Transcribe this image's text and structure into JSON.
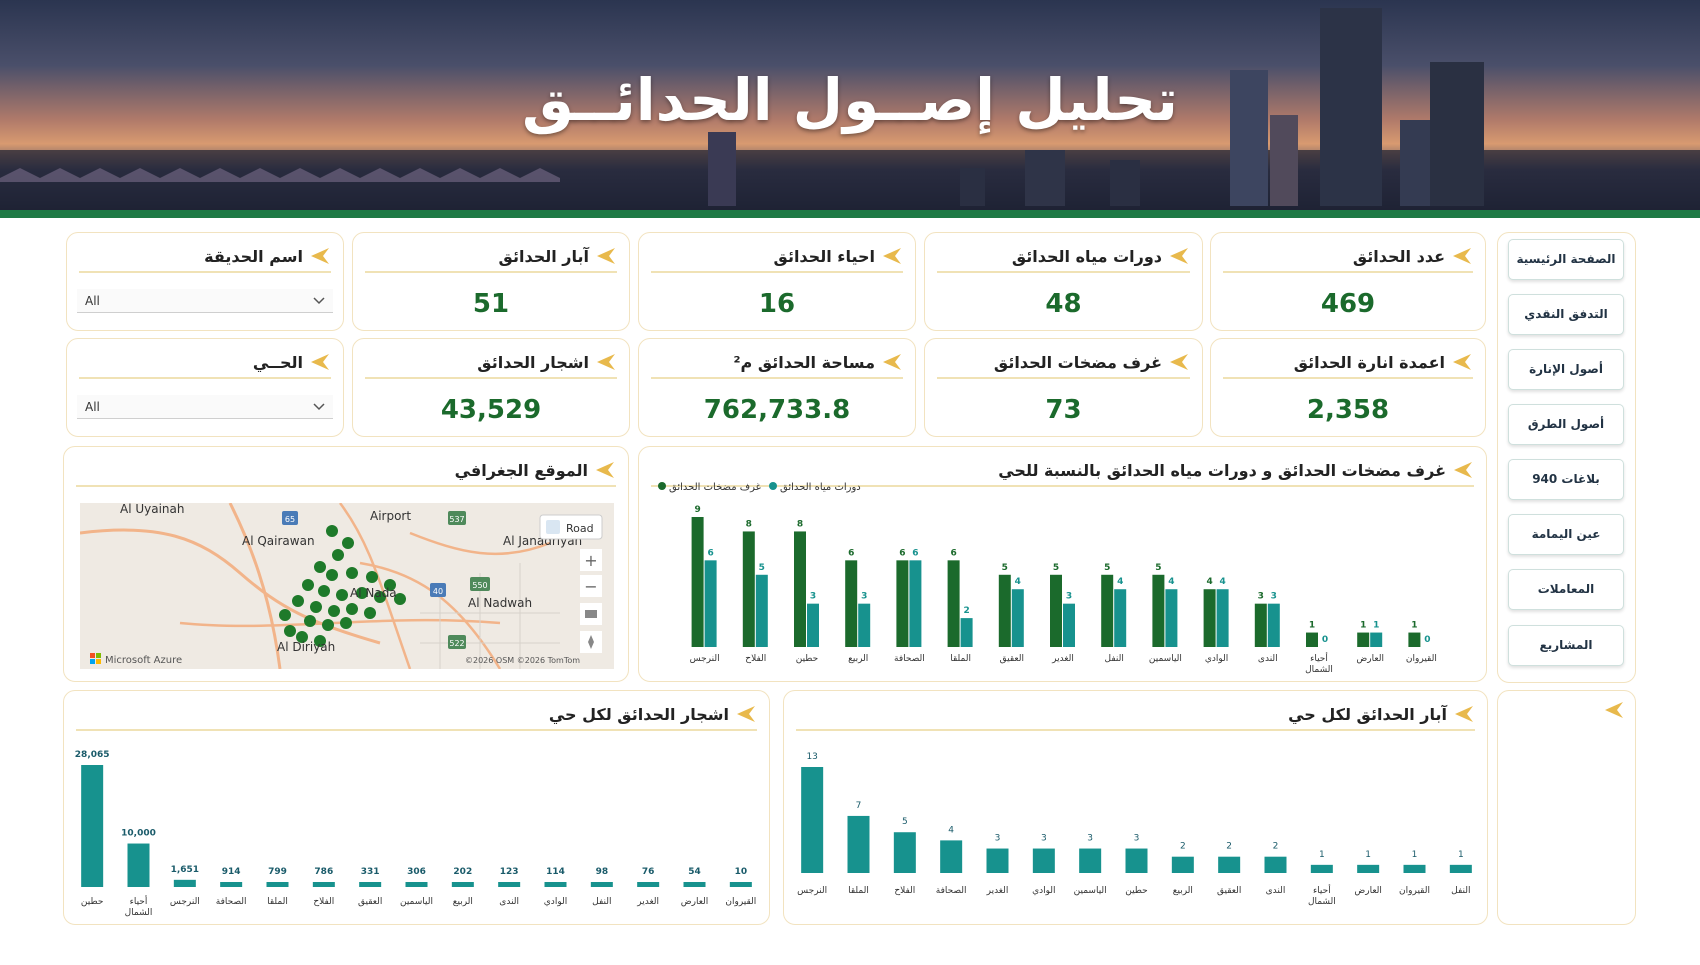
{
  "header": {
    "title": "تحليل إصــول الحدائــق"
  },
  "colors": {
    "dark_green": "#1b6a2c",
    "teal": "#17928e",
    "gold": "#e8b94c",
    "card_border": "#f2e3c0"
  },
  "nav": [
    "الصفحة الرئيسية",
    "التدفق النقدي",
    "أصول الإنارة",
    "أصول الطرق",
    "بلاغات 940",
    "عين اليمامة",
    "المعاملات",
    "المشاريع"
  ],
  "kpis": {
    "parks_count": {
      "label": "عدد الحدائق",
      "value": "469"
    },
    "water_cycles": {
      "label": "دورات مياه الحدائق",
      "value": "48"
    },
    "districts": {
      "label": "احياء الحدائق",
      "value": "16"
    },
    "wells": {
      "label": "آبار الحدائق",
      "value": "51"
    },
    "lighting": {
      "label": "اعمدة انارة الحدائق",
      "value": "2,358"
    },
    "pump_rooms": {
      "label": "غرف مضخات الحدائق",
      "value": "73"
    },
    "area": {
      "label": "مساحة الحدائق م²",
      "value": "762,733.8"
    },
    "trees": {
      "label": "اشجار الحدائق",
      "value": "43,529"
    }
  },
  "filters": {
    "park_name": {
      "label": "اسم الحديقة",
      "value": "All"
    },
    "district": {
      "label": "الحــي",
      "value": "All"
    }
  },
  "map": {
    "title": "الموقع الجغرافي",
    "road_button": "Road",
    "attribution": "©2026 OSM ©2026 TomTom",
    "brand": "Microsoft Azure",
    "places": [
      "Al Uyainah",
      "Airport",
      "Al Qairawan",
      "Al Janadriyah",
      "Al Nada",
      "Al Nadwah",
      "Al Diriyah"
    ],
    "road_shields": [
      "65",
      "537",
      "550",
      "40",
      "522"
    ],
    "zoom_in": "+",
    "zoom_out": "−"
  },
  "chart_pump_water": {
    "title": "غرف مضخات الحدائق و دورات مياه الحدائق بالنسبة للحي",
    "legend": [
      "دورات مياه الحدائق",
      "غرف مضخات الحدائق"
    ]
  },
  "chart_trees": {
    "title": "اشجار الحدائق  لكل حي"
  },
  "chart_wells": {
    "title": "آبار الحدائق لكل حي"
  },
  "chart_data": [
    {
      "type": "bar",
      "title": "غرف مضخات الحدائق و دورات مياه الحدائق بالنسبة للحي",
      "categories": [
        "النرجس",
        "الفلاح",
        "حطين",
        "الربيع",
        "الصحافة",
        "الملقا",
        "العقيق",
        "الغدير",
        "النفل",
        "الياسمين",
        "الوادي",
        "الندى",
        "أحياء الشمال",
        "العارض",
        "القيروان"
      ],
      "series": [
        {
          "name": "غرف مضخات الحدائق",
          "color": "#1b6a2c",
          "values": [
            9,
            8,
            8,
            6,
            6,
            6,
            5,
            5,
            5,
            5,
            4,
            3,
            1,
            1,
            1
          ]
        },
        {
          "name": "دورات مياه الحدائق",
          "color": "#17928e",
          "values": [
            6,
            5,
            3,
            3,
            6,
            2,
            4,
            3,
            4,
            4,
            4,
            3,
            0,
            1,
            0
          ]
        }
      ],
      "legend": "top-left"
    },
    {
      "type": "bar",
      "title": "اشجار الحدائق  لكل حي",
      "categories": [
        "حطين",
        "أحياء الشمال",
        "النرجس",
        "الصحافة",
        "الملقا",
        "الفلاح",
        "العقيق",
        "الياسمين",
        "الربيع",
        "الندى",
        "الوادي",
        "النفل",
        "الغدير",
        "العارض",
        "القيروان"
      ],
      "labels": [
        "28,065",
        "10,000",
        "1,651",
        "914",
        "799",
        "786",
        "331",
        "306",
        "202",
        "123",
        "114",
        "98",
        "76",
        "54",
        "10"
      ],
      "values": [
        28065,
        10000,
        1651,
        914,
        799,
        786,
        331,
        306,
        202,
        123,
        114,
        98,
        76,
        54,
        10
      ]
    },
    {
      "type": "bar",
      "title": "آبار الحدائق لكل حي",
      "categories": [
        "النرجس",
        "الملقا",
        "الفلاح",
        "الصحافة",
        "الغدير",
        "الوادي",
        "الياسمين",
        "حطين",
        "الربيع",
        "العقيق",
        "الندى",
        "أحياء الشمال",
        "العارض",
        "القيروان",
        "النفل"
      ],
      "values": [
        13,
        7,
        5,
        4,
        3,
        3,
        3,
        3,
        2,
        2,
        2,
        1,
        1,
        1,
        1
      ]
    }
  ]
}
